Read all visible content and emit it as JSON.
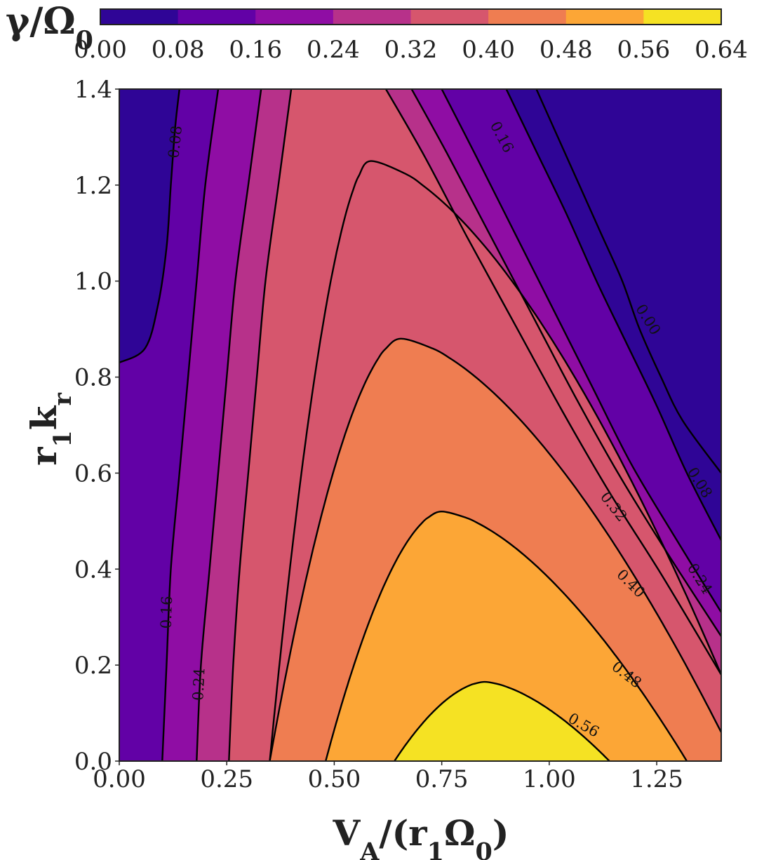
{
  "chart_data": {
    "type": "contour",
    "xlabel": "V_A/(r_1Ω_0)",
    "ylabel": "r_1k_r",
    "colorbar_label": "γ/Ω_0",
    "colormap": "plasma",
    "xlim": [
      0,
      1.4
    ],
    "ylim": [
      0,
      1.4
    ],
    "x_ticks": [
      "0.00",
      "0.25",
      "0.50",
      "0.75",
      "1.00",
      "1.25"
    ],
    "y_ticks": [
      "0.0",
      "0.2",
      "0.4",
      "0.6",
      "0.8",
      "1.0",
      "1.2",
      "1.4"
    ],
    "levels": [
      0.0,
      0.08,
      0.16,
      0.24,
      0.32,
      0.4,
      0.48,
      0.56,
      0.64
    ],
    "level_labels": [
      "0.00",
      "0.08",
      "0.16",
      "0.24",
      "0.32",
      "0.40",
      "0.48",
      "0.56",
      "0.64"
    ],
    "band_colors": [
      "#2f0596",
      "#6201a6",
      "#8f0da4",
      "#b7318a",
      "#d6566d",
      "#ef7d51",
      "#fca636",
      "#f5e223"
    ],
    "left_contours": [
      {
        "level_label": "0.08",
        "points": [
          [
            0,
            0.83
          ],
          [
            0.06,
            0.86
          ],
          [
            0.09,
            0.95
          ],
          [
            0.11,
            1.07
          ],
          [
            0.12,
            1.2
          ],
          [
            0.13,
            1.32
          ],
          [
            0.14,
            1.4
          ]
        ]
      },
      {
        "level_label": "0.16",
        "points": [
          [
            0.1,
            0
          ],
          [
            0.11,
            0.2
          ],
          [
            0.12,
            0.4
          ],
          [
            0.14,
            0.6
          ],
          [
            0.16,
            0.8
          ],
          [
            0.18,
            1.0
          ],
          [
            0.2,
            1.2
          ],
          [
            0.23,
            1.4
          ]
        ]
      },
      {
        "level_label": "0.24",
        "points": [
          [
            0.18,
            0
          ],
          [
            0.19,
            0.2
          ],
          [
            0.21,
            0.4
          ],
          [
            0.23,
            0.6
          ],
          [
            0.25,
            0.8
          ],
          [
            0.27,
            1.0
          ],
          [
            0.3,
            1.2
          ],
          [
            0.33,
            1.4
          ]
        ]
      },
      {
        "level_label": "0.32",
        "points": [
          [
            0.255,
            0
          ],
          [
            0.265,
            0.2
          ],
          [
            0.28,
            0.4
          ],
          [
            0.3,
            0.6
          ],
          [
            0.32,
            0.8
          ],
          [
            0.34,
            1.0
          ],
          [
            0.37,
            1.2
          ],
          [
            0.4,
            1.4
          ]
        ]
      }
    ],
    "right_contours": [
      {
        "level_label": "0.00",
        "points": [
          [
            0.97,
            1.4
          ],
          [
            1.02,
            1.3
          ],
          [
            1.07,
            1.2
          ],
          [
            1.12,
            1.1
          ],
          [
            1.17,
            1.0
          ],
          [
            1.21,
            0.9
          ],
          [
            1.26,
            0.8
          ],
          [
            1.31,
            0.71
          ],
          [
            1.4,
            0.6
          ]
        ]
      },
      {
        "level_label": "0.08",
        "points": [
          [
            0.9,
            1.4
          ],
          [
            0.97,
            1.27
          ],
          [
            1.04,
            1.14
          ],
          [
            1.11,
            1.0
          ],
          [
            1.18,
            0.87
          ],
          [
            1.25,
            0.74
          ],
          [
            1.32,
            0.6
          ],
          [
            1.4,
            0.46
          ]
        ]
      },
      {
        "level_label": "0.16",
        "points": [
          [
            0.75,
            1.4
          ],
          [
            0.83,
            1.26
          ],
          [
            0.92,
            1.1
          ],
          [
            1.01,
            0.94
          ],
          [
            1.1,
            0.78
          ],
          [
            1.19,
            0.62
          ],
          [
            1.29,
            0.47
          ],
          [
            1.4,
            0.31
          ]
        ]
      },
      {
        "level_label": "0.24",
        "points": [
          [
            0.68,
            1.4
          ],
          [
            0.76,
            1.27
          ],
          [
            0.86,
            1.1
          ],
          [
            0.96,
            0.93
          ],
          [
            1.06,
            0.76
          ],
          [
            1.16,
            0.6
          ],
          [
            1.27,
            0.44
          ],
          [
            1.4,
            0.26
          ]
        ]
      },
      {
        "level_label": "0.32",
        "points": [
          [
            0.62,
            1.4
          ],
          [
            0.71,
            1.26
          ],
          [
            0.81,
            1.09
          ],
          [
            0.92,
            0.91
          ],
          [
            1.03,
            0.73
          ],
          [
            1.14,
            0.56
          ],
          [
            1.26,
            0.39
          ],
          [
            1.4,
            0.18
          ]
        ]
      }
    ],
    "arch_contours": [
      {
        "level_label": "0.32",
        "x_left": 0.35,
        "x_right": 1.4,
        "y_right": 0.18,
        "x_peak": 0.585,
        "y_peak": 1.25
      },
      {
        "level_label": "0.40",
        "x_left": 0.35,
        "x_right": 1.4,
        "y_right": 0.06,
        "x_peak": 0.655,
        "y_peak": 0.88
      },
      {
        "level_label": "0.48",
        "x_left": 0.48,
        "x_right": 1.32,
        "y_right": 0,
        "x_peak": 0.75,
        "y_peak": 0.52
      },
      {
        "level_label": "0.56",
        "x_left": 0.64,
        "x_right": 1.14,
        "y_right": 0,
        "x_peak": 0.85,
        "y_peak": 0.165
      }
    ],
    "contour_labels": [
      {
        "text": "0.08",
        "x": 0.13,
        "y": 1.29,
        "angle": -84
      },
      {
        "text": "0.16",
        "x": 0.11,
        "y": 0.31,
        "angle": -88
      },
      {
        "text": "0.24",
        "x": 0.185,
        "y": 0.16,
        "angle": -87
      },
      {
        "text": "0.16",
        "x": 0.89,
        "y": 1.3,
        "angle": 62
      },
      {
        "text": "0.00",
        "x": 1.23,
        "y": 0.92,
        "angle": 58
      },
      {
        "text": "0.08",
        "x": 1.35,
        "y": 0.58,
        "angle": 58
      },
      {
        "text": "0.32",
        "x": 1.15,
        "y": 0.53,
        "angle": 52
      },
      {
        "text": "0.24",
        "x": 1.35,
        "y": 0.38,
        "angle": 58
      },
      {
        "text": "0.40",
        "x": 1.19,
        "y": 0.37,
        "angle": 45
      },
      {
        "text": "0.48",
        "x": 1.18,
        "y": 0.18,
        "angle": 38
      },
      {
        "text": "0.56",
        "x": 1.08,
        "y": 0.075,
        "angle": 30
      }
    ]
  }
}
